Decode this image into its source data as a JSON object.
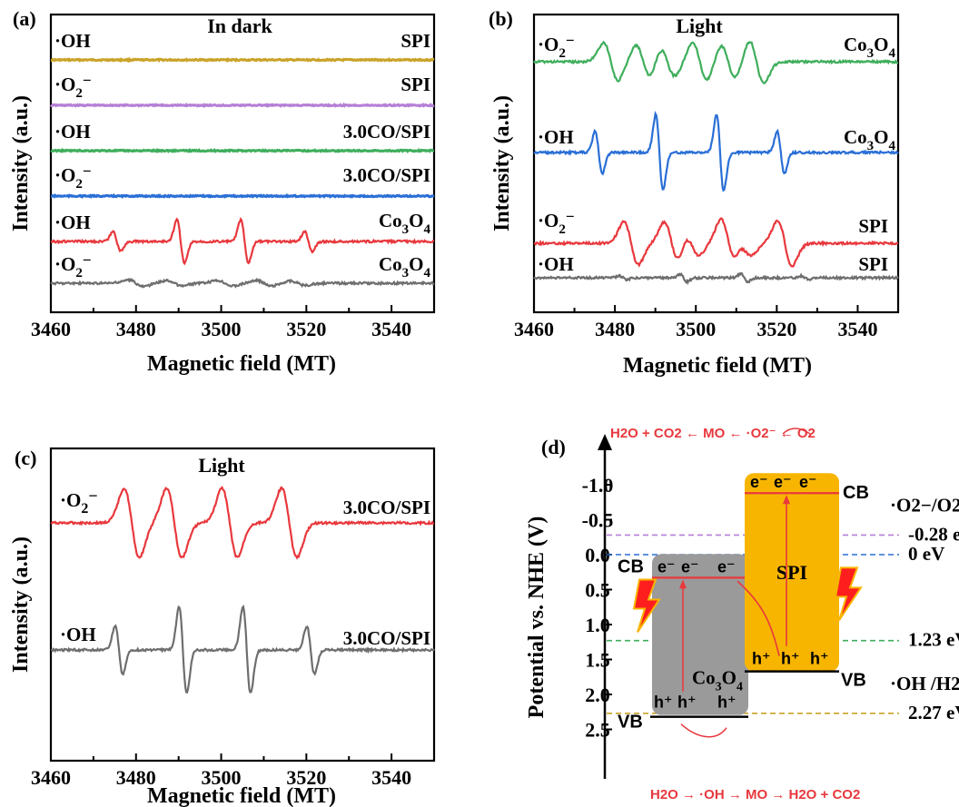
{
  "chart_data": [
    {
      "id": "a",
      "type": "line",
      "panel_label": "(a)",
      "title": "In dark",
      "xlabel": "Magnetic field (MT)",
      "ylabel": "Intensity (a.u.)",
      "xlim": [
        3460,
        3550
      ],
      "xticks": [
        "3460",
        "3480",
        "3500",
        "3520",
        "3540"
      ],
      "series": [
        {
          "radical": "·OH",
          "sample": "SPI",
          "color": "#c9a227",
          "kind": "flat"
        },
        {
          "radical": "·O2−",
          "sample": "SPI",
          "color": "#b57fd6",
          "kind": "flat"
        },
        {
          "radical": "·OH",
          "sample": "3.0CO/SPI",
          "color": "#3fae5c",
          "kind": "flat"
        },
        {
          "radical": "·O2−",
          "sample": "3.0CO/SPI",
          "color": "#2a6fd6",
          "kind": "flat"
        },
        {
          "radical": "·OH",
          "sample": "Co3O4",
          "color": "#e8383d",
          "kind": "oh",
          "peaks_x": [
            3475.5,
            3490.5,
            3505.5,
            3520.5
          ],
          "amplitudes": [
            0.45,
            1.0,
            1.0,
            0.45
          ]
        },
        {
          "radical": "·O2−",
          "sample": "Co3O4",
          "color": "#6e6e6e",
          "kind": "o2",
          "peaks_x": [
            3480,
            3489,
            3501,
            3510,
            3518
          ],
          "amplitudes": [
            0.18,
            0.15,
            0.15,
            0.15,
            0.12
          ]
        }
      ]
    },
    {
      "id": "b",
      "type": "line",
      "panel_label": "(b)",
      "title": "Light",
      "xlabel": "Magnetic field (MT)",
      "ylabel": "Intensity (a.u.)",
      "xlim": [
        3460,
        3550
      ],
      "xticks": [
        "3460",
        "3480",
        "3500",
        "3520",
        "3540"
      ],
      "series": [
        {
          "radical": "·O2−",
          "sample": "Co3O4",
          "color": "#3fae5c",
          "kind": "o2",
          "peaks_x": [
            3479,
            3487,
            3493,
            3501,
            3508,
            3515
          ],
          "amplitudes": [
            0.8,
            0.7,
            0.6,
            0.8,
            0.7,
            0.9
          ]
        },
        {
          "radical": "·OH",
          "sample": "Co3O4",
          "color": "#2a6fd6",
          "kind": "oh",
          "peaks_x": [
            3476,
            3491,
            3506,
            3521
          ],
          "amplitudes": [
            0.55,
            1.0,
            1.0,
            0.55
          ]
        },
        {
          "radical": "·O2−",
          "sample": "SPI",
          "color": "#e8383d",
          "kind": "o2",
          "peaks_x": [
            3484,
            3494,
            3499,
            3508,
            3512,
            3522
          ],
          "amplitudes": [
            0.9,
            0.9,
            0.5,
            1.0,
            0.5,
            0.95
          ]
        },
        {
          "radical": "·OH",
          "sample": "SPI",
          "color": "#6e6e6e",
          "kind": "oh",
          "peaks_x": [
            3482,
            3497,
            3512,
            3527
          ],
          "amplitudes": [
            0.15,
            0.3,
            0.3,
            0.15
          ]
        }
      ]
    },
    {
      "id": "c",
      "type": "line",
      "panel_label": "(c)",
      "title": "Light",
      "xlabel": "Magnetic field (MT)",
      "ylabel": "Intensity (a.u.)",
      "xlim": [
        3460,
        3550
      ],
      "xticks": [
        "3460",
        "3480",
        "3500",
        "3520",
        "3540"
      ],
      "series": [
        {
          "radical": "·O2−",
          "sample": "3.0CO/SPI",
          "color": "#e8383d",
          "kind": "o2",
          "peaks_x": [
            3479,
            3489,
            3502,
            3516
          ],
          "amplitudes": [
            1.0,
            1.0,
            1.0,
            1.0
          ]
        },
        {
          "radical": "·OH",
          "sample": "3.0CO/SPI",
          "color": "#6e6e6e",
          "kind": "oh",
          "peaks_x": [
            3476,
            3491,
            3506,
            3521
          ],
          "amplitudes": [
            0.55,
            1.0,
            1.0,
            0.55
          ]
        }
      ]
    }
  ],
  "diagram_d": {
    "panel_label": "(d)",
    "ylabel": "Potential vs. NHE (V)",
    "yticks": [
      "-1.0",
      "-0.5",
      "0.0",
      "0.5",
      "1.0",
      "1.5",
      "2.0",
      "2.5"
    ],
    "ylim": [
      -1.4,
      2.6
    ],
    "reference_lines": [
      {
        "label": "·O2−/O2",
        "value_text": "-0.28 eV",
        "potential": -0.28,
        "color": "#b57fd6"
      },
      {
        "label": "",
        "value_text": "0 eV",
        "potential": 0.0,
        "color": "#2a6fd6"
      },
      {
        "label": "",
        "value_text": "1.23 eV",
        "potential": 1.23,
        "color": "#3fae5c"
      },
      {
        "label": "·OH /H2O",
        "value_text": "2.27 eV",
        "potential": 2.27,
        "color": "#c9a227"
      }
    ],
    "co3o4": {
      "name": "Co3O4",
      "cb": 0.33,
      "vb": 2.32,
      "color": "#9a9a9a"
    },
    "spi": {
      "name": "SPI",
      "cb": -0.88,
      "vb": 1.67,
      "color": "#f7b500"
    },
    "labels": {
      "cb": "CB",
      "vb": "VB",
      "electron": "e⁻",
      "hole": "h⁺",
      "top_reaction": "H2O + CO2 ← MO ← ·O2⁻ ← O2",
      "bottom_reaction": "H2O → ·OH → MO → H2O + CO2"
    }
  }
}
